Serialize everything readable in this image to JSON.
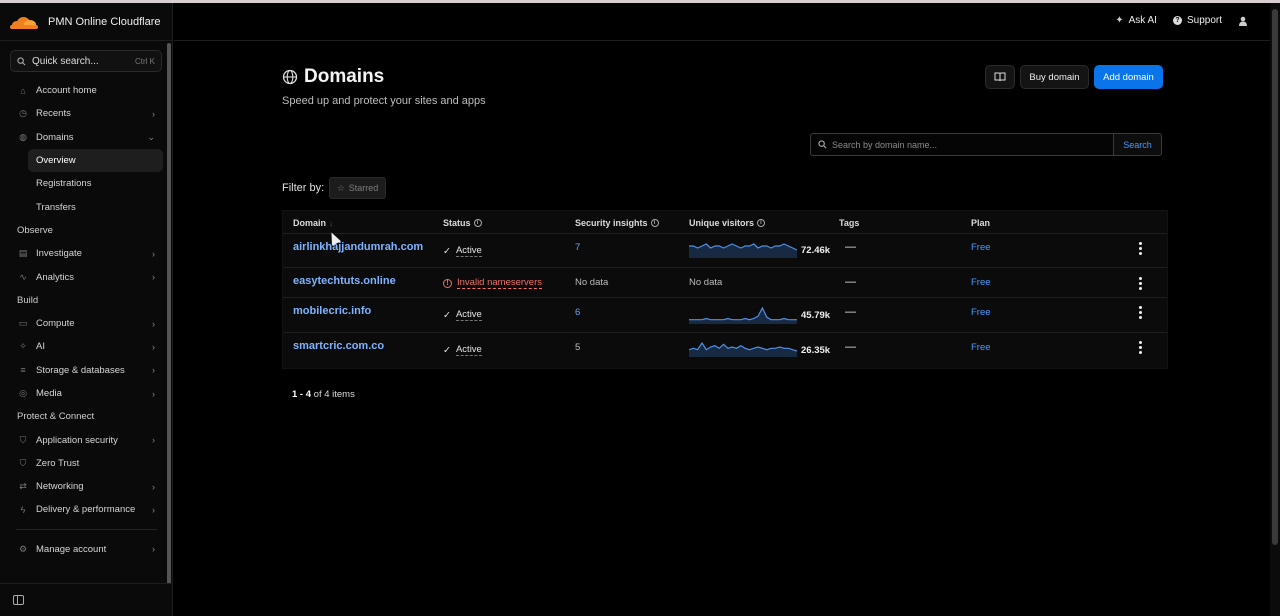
{
  "app": {
    "brand_name": "PMN Online Cloudflare",
    "brand_color": "#f38020",
    "accent_color": "#0a74ea"
  },
  "sidebar": {
    "search": {
      "label": "Quick search...",
      "shortcut": "Ctrl K"
    },
    "items": [
      {
        "label": "Account home",
        "icon": "home-icon"
      },
      {
        "label": "Recents",
        "icon": "clock-icon",
        "chevron": "›"
      },
      {
        "label": "Domains",
        "icon": "globe-icon",
        "chevron": "⌄"
      }
    ],
    "domains_sub": [
      {
        "label": "Overview",
        "active": true
      },
      {
        "label": "Registrations"
      },
      {
        "label": "Transfers"
      }
    ],
    "observe": {
      "title": "Observe",
      "items": [
        {
          "label": "Investigate",
          "icon": "investigate-icon",
          "chevron": "›"
        },
        {
          "label": "Analytics",
          "icon": "analytics-icon",
          "chevron": "›"
        }
      ]
    },
    "build": {
      "title": "Build",
      "items": [
        {
          "label": "Compute",
          "icon": "compute-icon",
          "chevron": "›"
        },
        {
          "label": "AI",
          "icon": "ai-icon",
          "chevron": "›"
        },
        {
          "label": "Storage & databases",
          "icon": "storage-icon",
          "chevron": "›"
        },
        {
          "label": "Media",
          "icon": "media-icon",
          "chevron": "›"
        }
      ]
    },
    "protect": {
      "title": "Protect & Connect",
      "items": [
        {
          "label": "Application security",
          "icon": "shield-icon",
          "chevron": "›"
        },
        {
          "label": "Zero Trust",
          "icon": "zero-trust-icon"
        },
        {
          "label": "Networking",
          "icon": "networking-icon",
          "chevron": "›"
        },
        {
          "label": "Delivery & performance",
          "icon": "lightning-icon",
          "chevron": "›"
        }
      ]
    },
    "manage": {
      "label": "Manage account",
      "icon": "gear-icon",
      "chevron": "›"
    }
  },
  "topbar": {
    "ask_ai": "Ask AI",
    "support": "Support"
  },
  "page": {
    "title": "Domains",
    "subtitle": "Speed up and protect your sites and apps",
    "buy_button": "Buy domain",
    "add_button": "Add domain",
    "search_placeholder": "Search by domain name...",
    "search_button": "Search",
    "filter_label": "Filter by:",
    "filter_chip": "Starred"
  },
  "table": {
    "columns": [
      "Domain",
      "Status",
      "Security insights",
      "Unique visitors",
      "Tags",
      "Plan"
    ],
    "rows": [
      {
        "domain": "airlinkhajjandumrah.com",
        "status": "Active",
        "status_ok": true,
        "insights": "7",
        "visitors": "72.46k",
        "tags": "—",
        "plan": "Free",
        "spark": [
          5,
          5,
          4,
          5,
          6,
          4,
          5,
          5,
          4,
          5,
          6,
          5,
          4,
          5,
          5,
          6,
          4,
          5,
          5,
          4,
          5,
          5,
          6,
          5,
          4,
          3
        ]
      },
      {
        "domain": "easytechtuts.online",
        "status": "Invalid nameservers",
        "status_ok": false,
        "insights": "No data",
        "visitors": "No data",
        "tags": "—",
        "plan": "Free",
        "spark": []
      },
      {
        "domain": "mobilecric.info",
        "status": "Active",
        "status_ok": true,
        "insights": "6",
        "visitors": "45.79k",
        "tags": "—",
        "plan": "Free",
        "spark": [
          2,
          2,
          2,
          2,
          3,
          2,
          2,
          2,
          2,
          3,
          2,
          2,
          2,
          3,
          2,
          3,
          5,
          12,
          4,
          2,
          2,
          2,
          3,
          2,
          2,
          2
        ]
      },
      {
        "domain": "smartcric.com.co",
        "status": "Active",
        "status_ok": true,
        "insights": "5",
        "visitors": "26.35k",
        "tags": "—",
        "plan": "Free",
        "spark": [
          4,
          5,
          4,
          9,
          4,
          6,
          7,
          5,
          8,
          5,
          6,
          5,
          7,
          5,
          4,
          5,
          6,
          5,
          4,
          5,
          5,
          6,
          5,
          5,
          4,
          3
        ]
      }
    ],
    "pager": {
      "range": "1 - 4",
      "total_text": "of 4 items"
    }
  }
}
